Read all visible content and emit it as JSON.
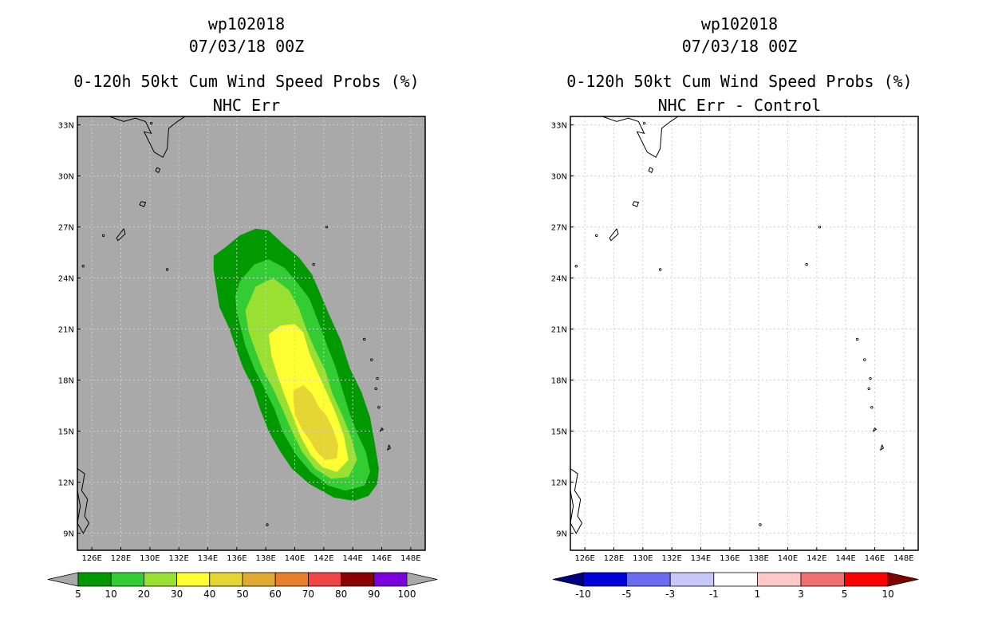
{
  "colors": {
    "bg_left": "#a9a9a9",
    "bg_right": "#ffffff",
    "gridline": "#d0d0d0"
  },
  "chart_data": [
    {
      "type": "contour-map",
      "title": [
        "wp102018",
        "07/03/18 00Z",
        "0-120h 50kt Cum Wind Speed Probs (%)",
        "NHC Err"
      ],
      "xlabel": "",
      "ylabel": "",
      "x_range": [
        125,
        149
      ],
      "y_range": [
        8,
        33.5
      ],
      "xticks": [
        126,
        128,
        130,
        132,
        134,
        136,
        138,
        140,
        142,
        144,
        146,
        148
      ],
      "xtick_labels": [
        "126E",
        "128E",
        "130E",
        "132E",
        "134E",
        "136E",
        "138E",
        "140E",
        "142E",
        "144E",
        "146E",
        "148E"
      ],
      "yticks": [
        9,
        12,
        15,
        18,
        21,
        24,
        27,
        30,
        33
      ],
      "ytick_labels": [
        "9N",
        "12N",
        "15N",
        "18N",
        "21N",
        "24N",
        "27N",
        "30N",
        "33N"
      ],
      "grid": true,
      "colorbar": {
        "labels": [
          "5",
          "10",
          "20",
          "30",
          "40",
          "50",
          "60",
          "70",
          "80",
          "90",
          "100"
        ],
        "colors": [
          "#009900",
          "#33cc33",
          "#99e033",
          "#ffff33",
          "#e6d633",
          "#e0aa33",
          "#e87f2a",
          "#f04545",
          "#8b0000",
          "#7b00dd"
        ],
        "left_triangle": "#a9a9a9",
        "right_triangle": "#a9a9a9"
      },
      "levels": [
        {
          "level": 5,
          "polygon": [
            [
              134.4,
              25.3
            ],
            [
              135.2,
              25.8
            ],
            [
              136.2,
              26.5
            ],
            [
              137.3,
              26.9
            ],
            [
              138.2,
              26.8
            ],
            [
              139.2,
              26.0
            ],
            [
              140.3,
              25.2
            ],
            [
              141.2,
              24.2
            ],
            [
              141.8,
              23.0
            ],
            [
              142.4,
              21.8
            ],
            [
              143.2,
              20.3
            ],
            [
              143.8,
              18.7
            ],
            [
              144.6,
              17.3
            ],
            [
              145.2,
              15.8
            ],
            [
              145.5,
              14.4
            ],
            [
              145.8,
              12.8
            ],
            [
              145.7,
              11.9
            ],
            [
              145.1,
              11.2
            ],
            [
              144.1,
              10.9
            ],
            [
              142.7,
              11.1
            ],
            [
              141.0,
              11.9
            ],
            [
              139.8,
              12.8
            ],
            [
              139.0,
              13.8
            ],
            [
              138.2,
              15.0
            ],
            [
              137.6,
              16.3
            ],
            [
              137.1,
              17.6
            ],
            [
              136.4,
              18.8
            ],
            [
              135.9,
              20.0
            ],
            [
              135.5,
              21.0
            ],
            [
              134.8,
              22.3
            ],
            [
              134.6,
              23.4
            ],
            [
              134.4,
              24.5
            ]
          ]
        },
        {
          "level": 10,
          "polygon": [
            [
              136.2,
              23.8
            ],
            [
              137.2,
              24.8
            ],
            [
              138.2,
              25.1
            ],
            [
              139.3,
              24.6
            ],
            [
              140.2,
              23.7
            ],
            [
              141.0,
              22.8
            ],
            [
              141.6,
              21.5
            ],
            [
              142.2,
              20.1
            ],
            [
              142.8,
              18.8
            ],
            [
              143.3,
              17.4
            ],
            [
              143.8,
              16.0
            ],
            [
              144.3,
              14.9
            ],
            [
              144.9,
              13.8
            ],
            [
              145.2,
              12.6
            ],
            [
              144.8,
              11.8
            ],
            [
              143.5,
              11.5
            ],
            [
              142.3,
              11.8
            ],
            [
              141.1,
              12.6
            ],
            [
              140.1,
              13.6
            ],
            [
              139.2,
              14.9
            ],
            [
              138.6,
              16.3
            ],
            [
              137.9,
              17.5
            ],
            [
              137.2,
              18.7
            ],
            [
              136.6,
              20.0
            ],
            [
              136.3,
              21.0
            ],
            [
              136.0,
              22.0
            ],
            [
              135.9,
              22.9
            ]
          ]
        },
        {
          "level": 20,
          "polygon": [
            [
              136.6,
              22.1
            ],
            [
              137.3,
              23.5
            ],
            [
              138.5,
              24.0
            ],
            [
              139.6,
              23.3
            ],
            [
              140.3,
              22.2
            ],
            [
              140.8,
              21.0
            ],
            [
              141.4,
              19.8
            ],
            [
              142.1,
              18.6
            ],
            [
              142.6,
              17.2
            ],
            [
              143.3,
              15.9
            ],
            [
              143.9,
              14.6
            ],
            [
              144.3,
              13.3
            ],
            [
              143.7,
              12.3
            ],
            [
              142.5,
              12.2
            ],
            [
              141.4,
              12.8
            ],
            [
              140.5,
              13.8
            ],
            [
              139.8,
              15.0
            ],
            [
              139.2,
              16.2
            ],
            [
              138.5,
              17.5
            ],
            [
              137.8,
              18.6
            ],
            [
              137.3,
              19.7
            ],
            [
              136.8,
              20.9
            ]
          ]
        },
        {
          "level": 30,
          "polygon": [
            [
              138.2,
              20.7
            ],
            [
              139.0,
              21.2
            ],
            [
              140.0,
              21.3
            ],
            [
              140.6,
              20.8
            ],
            [
              141.0,
              19.6
            ],
            [
              141.6,
              18.4
            ],
            [
              142.3,
              17.1
            ],
            [
              142.9,
              15.9
            ],
            [
              143.4,
              14.7
            ],
            [
              143.7,
              13.3
            ],
            [
              142.9,
              12.6
            ],
            [
              141.9,
              12.9
            ],
            [
              141.1,
              13.6
            ],
            [
              140.4,
              14.7
            ],
            [
              139.8,
              16.0
            ],
            [
              139.3,
              17.1
            ],
            [
              138.8,
              18.3
            ],
            [
              138.4,
              19.4
            ]
          ]
        },
        {
          "level": 40,
          "polygon": [
            [
              139.9,
              17.4
            ],
            [
              140.6,
              17.7
            ],
            [
              141.2,
              17.2
            ],
            [
              141.6,
              16.5
            ],
            [
              142.2,
              15.9
            ],
            [
              142.6,
              15.2
            ],
            [
              143.0,
              14.2
            ],
            [
              142.9,
              13.4
            ],
            [
              142.1,
              13.3
            ],
            [
              141.5,
              13.8
            ],
            [
              141.0,
              14.5
            ],
            [
              140.5,
              15.1
            ],
            [
              140.0,
              16.0
            ],
            [
              139.9,
              16.8
            ]
          ]
        }
      ]
    },
    {
      "type": "contour-map",
      "title": [
        "wp102018",
        "07/03/18 00Z",
        "0-120h 50kt Cum Wind Speed Probs (%)",
        "NHC Err - Control"
      ],
      "xlabel": "",
      "ylabel": "",
      "x_range": [
        125,
        149
      ],
      "y_range": [
        8,
        33.5
      ],
      "xticks": [
        126,
        128,
        130,
        132,
        134,
        136,
        138,
        140,
        142,
        144,
        146,
        148
      ],
      "xtick_labels": [
        "126E",
        "128E",
        "130E",
        "132E",
        "134E",
        "136E",
        "138E",
        "140E",
        "142E",
        "144E",
        "146E",
        "148E"
      ],
      "yticks": [
        9,
        12,
        15,
        18,
        21,
        24,
        27,
        30,
        33
      ],
      "ytick_labels": [
        "9N",
        "12N",
        "15N",
        "18N",
        "21N",
        "24N",
        "27N",
        "30N",
        "33N"
      ],
      "grid": true,
      "colorbar": {
        "labels": [
          "-10",
          "-5",
          "-3",
          "-1",
          "1",
          "3",
          "5",
          "10"
        ],
        "colors": [
          "#0000d8",
          "#6b6bf0",
          "#c8c8f8",
          "#ffffff",
          "#ffc8c8",
          "#f07070",
          "#ff0000"
        ],
        "left_triangle": "#000080",
        "right_triangle": "#800000"
      },
      "levels": []
    }
  ]
}
